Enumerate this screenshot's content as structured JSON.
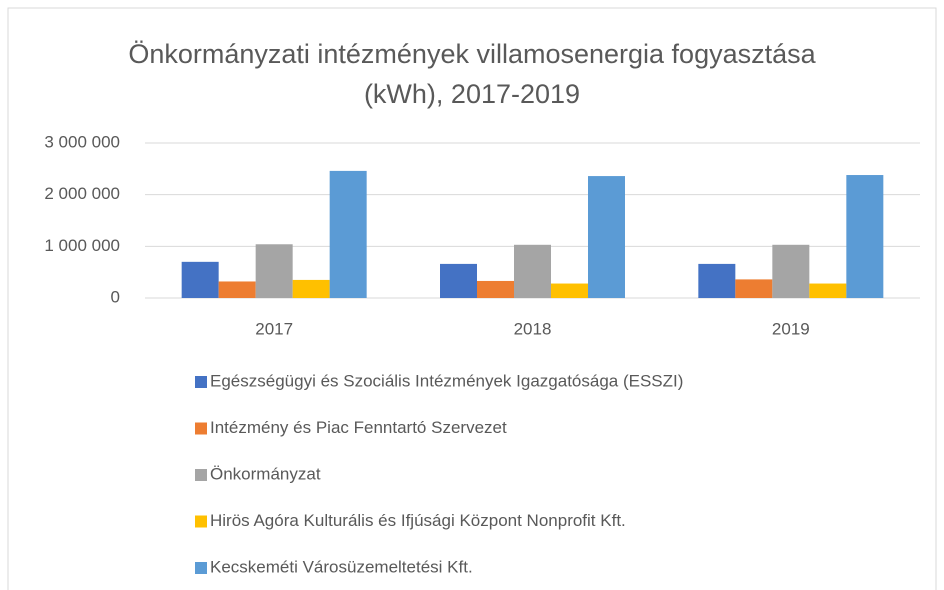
{
  "chart_data": {
    "type": "bar",
    "title": "Önkormányzati intézmények villamosenergia fogyasztása (kWh), 2017-2019",
    "categories": [
      "2017",
      "2018",
      "2019"
    ],
    "series": [
      {
        "name": "Egészségügyi és Szociális Intézmények Igazgatósága (ESSZI)",
        "color": "#4472c4",
        "values": [
          700000,
          660000,
          660000
        ]
      },
      {
        "name": "Intézmény és Piac Fenntartó Szervezet",
        "color": "#ed7d31",
        "values": [
          320000,
          330000,
          360000
        ]
      },
      {
        "name": "Önkormányzat",
        "color": "#a5a5a5",
        "values": [
          1040000,
          1030000,
          1030000
        ]
      },
      {
        "name": "Hirös Agóra Kulturális és Ifjúsági Központ Nonprofit Kft.",
        "color": "#ffc000",
        "values": [
          350000,
          280000,
          280000
        ]
      },
      {
        "name": "Kecskeméti Városüzemeltetési Kft.",
        "color": "#5b9bd5",
        "values": [
          2460000,
          2360000,
          2380000
        ]
      }
    ],
    "ylim": [
      0,
      3000000
    ],
    "yticks": [
      0,
      {
        "value": 1000000,
        "label": "1 000 000"
      },
      {
        "value": 2000000,
        "label": "2 000 000"
      },
      {
        "value": 3000000,
        "label": "3 000 000"
      }
    ],
    "grid": true,
    "legend": "bottom"
  }
}
